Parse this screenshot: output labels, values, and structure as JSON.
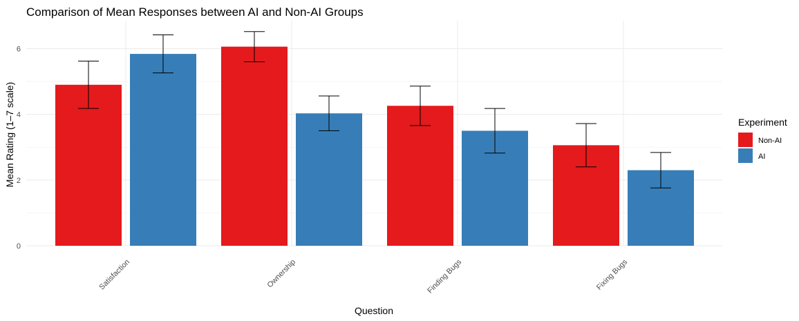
{
  "chart_data": {
    "type": "bar",
    "title": "Comparison of Mean Responses between AI and Non-AI Groups",
    "xlabel": "Question",
    "ylabel": "Mean Rating (1–7 scale)",
    "categories": [
      "Satisfaction",
      "Ownership",
      "Finding Bugs",
      "Fixing Bugs"
    ],
    "series": [
      {
        "name": "Non-AI",
        "color": "#E41A1C",
        "values": [
          4.9,
          6.06,
          4.26,
          3.06
        ],
        "error_low": [
          4.18,
          5.6,
          3.66,
          2.4
        ],
        "error_high": [
          5.62,
          6.52,
          4.86,
          3.72
        ]
      },
      {
        "name": "AI",
        "color": "#377EB8",
        "values": [
          5.84,
          4.03,
          3.5,
          2.3
        ],
        "error_low": [
          5.26,
          3.5,
          2.82,
          1.76
        ],
        "error_high": [
          6.42,
          4.56,
          4.18,
          2.84
        ]
      }
    ],
    "ylim": [
      0,
      6.85
    ],
    "yticks": [
      "0",
      "2",
      "4",
      "6"
    ],
    "grid": true,
    "legend": {
      "title": "Experiment",
      "placement": "right"
    }
  }
}
